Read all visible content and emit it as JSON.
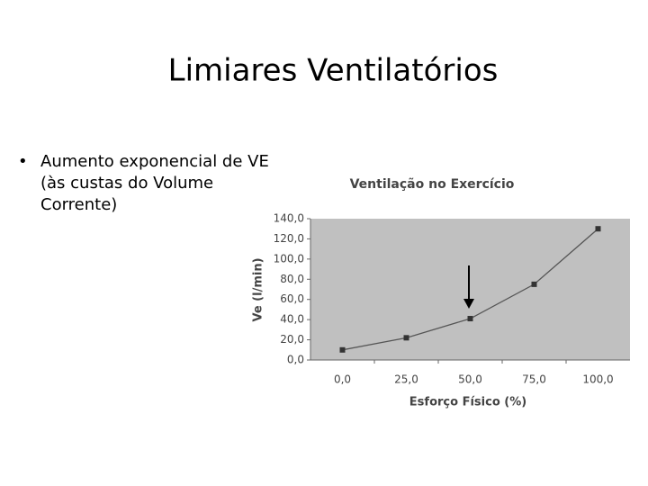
{
  "slide": {
    "title": "Limiares Ventilatórios",
    "bullets": [
      "Aumento exponencial de VE",
      "(às custas do Volume",
      "Corrente)"
    ]
  },
  "chart_data": {
    "type": "line",
    "title": "Ventilação no Exercício",
    "x_label": "Esforço Físico (%)",
    "y_label": "Ve (l/min)",
    "categories": [
      "0,0",
      "25,0",
      "50,0",
      "75,0",
      "100,0"
    ],
    "series": [
      {
        "name": "Ve",
        "color": "#555555",
        "values": [
          10,
          22,
          41,
          75,
          130
        ]
      }
    ],
    "ylim": [
      0,
      140
    ],
    "yticks": [
      {
        "value": 0,
        "label": "0,0"
      },
      {
        "value": 20,
        "label": "20,0"
      },
      {
        "value": 40,
        "label": "40,0"
      },
      {
        "value": 60,
        "label": "60,0"
      },
      {
        "value": 80,
        "label": "80,0"
      },
      {
        "value": 100,
        "label": "100,0"
      },
      {
        "value": 120,
        "label": "120,0"
      },
      {
        "value": 140,
        "label": "140,0"
      }
    ],
    "plot_background": "#c0c0c0"
  }
}
